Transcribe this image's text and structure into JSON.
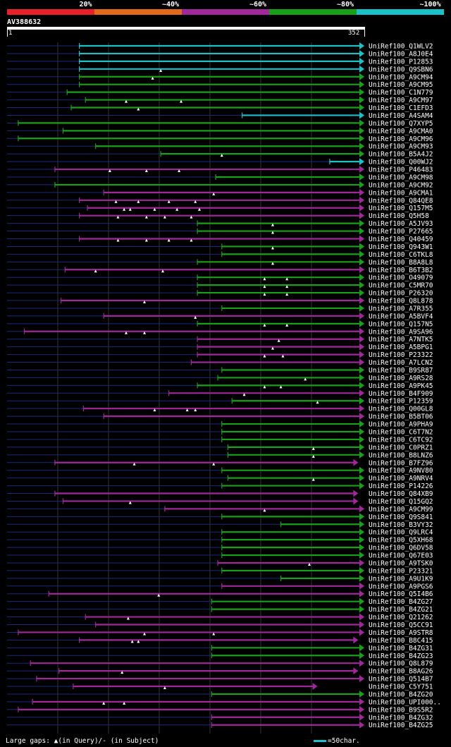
{
  "legend": {
    "labels": [
      "20%",
      "~40%",
      "~60%",
      "~80%",
      "~100%"
    ],
    "colors": [
      "#e8202a",
      "#e26a1a",
      "#a0289a",
      "#18a018",
      "#18c2c8"
    ]
  },
  "query": {
    "id": "AV388632",
    "start": "1",
    "end": "352",
    "length": 352
  },
  "colors": {
    "cyan": "#18c2c8",
    "green": "#18a018",
    "magenta": "#a0289a",
    "thin": "#1a2a7a",
    "grid": "#333"
  },
  "footer": {
    "gaps": "Large gaps: ▲(in Query)/- (in Subject)",
    "scale": "=50char."
  },
  "hits": [
    {
      "id": "UniRef100_Q1WLV2",
      "c": "cyan",
      "s": 72,
      "e": 352,
      "g": []
    },
    {
      "id": "UniRef100_A8J0E4",
      "c": "cyan",
      "s": 72,
      "e": 352,
      "g": []
    },
    {
      "id": "UniRef100_P12853",
      "c": "cyan",
      "s": 72,
      "e": 352,
      "g": []
    },
    {
      "id": "UniRef100_Q9SBN6",
      "c": "cyan",
      "s": 72,
      "e": 352,
      "g": [
        152
      ]
    },
    {
      "id": "UniRef100_A9CM94",
      "c": "green",
      "s": 72,
      "e": 352,
      "g": [
        144
      ]
    },
    {
      "id": "UniRef100_A9CM95",
      "c": "green",
      "s": 72,
      "e": 352,
      "g": []
    },
    {
      "id": "UniRef100_C1N779",
      "c": "green",
      "s": 60,
      "e": 352,
      "g": []
    },
    {
      "id": "UniRef100_A9CM97",
      "c": "green",
      "s": 78,
      "e": 352,
      "g": [
        118,
        172
      ]
    },
    {
      "id": "UniRef100_C1EFD3",
      "c": "green",
      "s": 64,
      "e": 352,
      "g": [
        130
      ]
    },
    {
      "id": "UniRef100_A4SAM4",
      "c": "cyan",
      "s": 232,
      "e": 352,
      "g": []
    },
    {
      "id": "UniRef100_Q7XYP5",
      "c": "green",
      "s": 12,
      "e": 352,
      "g": []
    },
    {
      "id": "UniRef100_A9CMA0",
      "c": "green",
      "s": 56,
      "e": 352,
      "g": []
    },
    {
      "id": "UniRef100_A9CM96",
      "c": "green",
      "s": 12,
      "e": 352,
      "g": []
    },
    {
      "id": "UniRef100_A9CM93",
      "c": "green",
      "s": 88,
      "e": 352,
      "g": []
    },
    {
      "id": "UniRef100_B5A4J2",
      "c": "green",
      "s": 152,
      "e": 352,
      "g": [
        212
      ]
    },
    {
      "id": "UniRef100_Q00WJ2",
      "c": "cyan",
      "s": 318,
      "e": 352,
      "g": []
    },
    {
      "id": "UniRef100_P46483",
      "c": "magenta",
      "s": 48,
      "e": 352,
      "g": [
        102,
        138,
        170
      ]
    },
    {
      "id": "UniRef100_A9CM98",
      "c": "green",
      "s": 206,
      "e": 352,
      "g": []
    },
    {
      "id": "UniRef100_A9CM92",
      "c": "green",
      "s": 48,
      "e": 352,
      "g": []
    },
    {
      "id": "UniRef100_A9CMA1",
      "c": "magenta",
      "s": 96,
      "e": 352,
      "g": [
        204
      ]
    },
    {
      "id": "UniRef100_Q84QE8",
      "c": "magenta",
      "s": 72,
      "e": 352,
      "g": [
        108,
        130,
        160,
        186
      ]
    },
    {
      "id": "UniRef100_Q157M5",
      "c": "magenta",
      "s": 80,
      "e": 352,
      "g": [
        116,
        122,
        146,
        168,
        190
      ]
    },
    {
      "id": "UniRef100_Q5H58",
      "c": "magenta",
      "s": 72,
      "e": 352,
      "g": [
        110,
        138,
        156,
        182
      ]
    },
    {
      "id": "UniRef100_A5JV93",
      "c": "green",
      "s": 188,
      "e": 352,
      "g": [
        262
      ]
    },
    {
      "id": "UniRef100_P27665",
      "c": "green",
      "s": 188,
      "e": 352,
      "g": [
        262
      ]
    },
    {
      "id": "UniRef100_Q40459",
      "c": "magenta",
      "s": 72,
      "e": 352,
      "g": [
        110,
        138,
        160,
        182
      ]
    },
    {
      "id": "UniRef100_Q943W1",
      "c": "green",
      "s": 212,
      "e": 352,
      "g": [
        262
      ]
    },
    {
      "id": "UniRef100_C6TKL8",
      "c": "green",
      "s": 212,
      "e": 352,
      "g": []
    },
    {
      "id": "UniRef100_B8A8L8",
      "c": "green",
      "s": 188,
      "e": 352,
      "g": [
        262
      ]
    },
    {
      "id": "UniRef100_B6T3B2",
      "c": "magenta",
      "s": 58,
      "e": 352,
      "g": [
        88,
        154
      ]
    },
    {
      "id": "UniRef100_O49079",
      "c": "green",
      "s": 188,
      "e": 352,
      "g": [
        254,
        276
      ]
    },
    {
      "id": "UniRef100_C5MR70",
      "c": "green",
      "s": 188,
      "e": 352,
      "g": [
        254,
        276
      ]
    },
    {
      "id": "UniRef100_P26320",
      "c": "green",
      "s": 188,
      "e": 352,
      "g": [
        254,
        276
      ]
    },
    {
      "id": "UniRef100_Q8L878",
      "c": "magenta",
      "s": 54,
      "e": 352,
      "g": [
        136
      ]
    },
    {
      "id": "UniRef100_A7R355",
      "c": "green",
      "s": 212,
      "e": 352,
      "g": []
    },
    {
      "id": "UniRef100_A5BVF4",
      "c": "magenta",
      "s": 96,
      "e": 352,
      "g": [
        186
      ]
    },
    {
      "id": "UniRef100_Q157N5",
      "c": "green",
      "s": 188,
      "e": 352,
      "g": [
        254,
        276
      ]
    },
    {
      "id": "UniRef100_A9SA96",
      "c": "magenta",
      "s": 18,
      "e": 352,
      "g": [
        118,
        136
      ]
    },
    {
      "id": "UniRef100_A7NTK5",
      "c": "magenta",
      "s": 188,
      "e": 352,
      "g": [
        268
      ]
    },
    {
      "id": "UniRef100_A5BPG1",
      "c": "magenta",
      "s": 188,
      "e": 352,
      "g": [
        262
      ]
    },
    {
      "id": "UniRef100_P23322",
      "c": "magenta",
      "s": 188,
      "e": 352,
      "g": [
        254,
        272
      ]
    },
    {
      "id": "UniRef100_A7LCN2",
      "c": "magenta",
      "s": 182,
      "e": 352,
      "g": []
    },
    {
      "id": "UniRef100_B9SR87",
      "c": "green",
      "s": 212,
      "e": 352,
      "g": []
    },
    {
      "id": "UniRef100_A9RS28",
      "c": "green",
      "s": 208,
      "e": 352,
      "g": [
        294
      ]
    },
    {
      "id": "UniRef100_A9PK45",
      "c": "green",
      "s": 188,
      "e": 352,
      "g": [
        254,
        270
      ]
    },
    {
      "id": "UniRef100_B4F909",
      "c": "magenta",
      "s": 160,
      "e": 352,
      "g": [
        234
      ]
    },
    {
      "id": "UniRef100_P12359",
      "c": "green",
      "s": 222,
      "e": 352,
      "g": [
        306
      ]
    },
    {
      "id": "UniRef100_Q00GL8",
      "c": "magenta",
      "s": 76,
      "e": 352,
      "g": [
        146,
        178,
        186
      ]
    },
    {
      "id": "UniRef100_B5BT06",
      "c": "magenta",
      "s": 96,
      "e": 352,
      "g": []
    },
    {
      "id": "UniRef100_A9PHA9",
      "c": "green",
      "s": 212,
      "e": 352,
      "g": []
    },
    {
      "id": "UniRef100_C6T7N2",
      "c": "green",
      "s": 212,
      "e": 352,
      "g": []
    },
    {
      "id": "UniRef100_C6TC92",
      "c": "green",
      "s": 212,
      "e": 352,
      "g": []
    },
    {
      "id": "UniRef100_C0PRZ1",
      "c": "green",
      "s": 218,
      "e": 352,
      "g": [
        302
      ]
    },
    {
      "id": "UniRef100_B8LNZ6",
      "c": "green",
      "s": 218,
      "e": 352,
      "g": [
        302
      ]
    },
    {
      "id": "UniRef100_B7FZ96",
      "c": "magenta",
      "s": 48,
      "e": 346,
      "g": [
        126,
        204
      ]
    },
    {
      "id": "UniRef100_A9NV80",
      "c": "green",
      "s": 212,
      "e": 352,
      "g": []
    },
    {
      "id": "UniRef100_A9NRV4",
      "c": "green",
      "s": 218,
      "e": 352,
      "g": [
        302
      ]
    },
    {
      "id": "UniRef100_P14226",
      "c": "green",
      "s": 212,
      "e": 352,
      "g": []
    },
    {
      "id": "UniRef100_Q84XB9",
      "c": "magenta",
      "s": 48,
      "e": 346,
      "g": []
    },
    {
      "id": "UniRef100_Q15GQ2",
      "c": "magenta",
      "s": 56,
      "e": 346,
      "g": [
        122
      ]
    },
    {
      "id": "UniRef100_A9CM99",
      "c": "magenta",
      "s": 156,
      "e": 352,
      "g": [
        254
      ]
    },
    {
      "id": "UniRef100_Q9S841",
      "c": "green",
      "s": 212,
      "e": 352,
      "g": []
    },
    {
      "id": "UniRef100_B3VY32",
      "c": "green",
      "s": 270,
      "e": 352,
      "g": []
    },
    {
      "id": "UniRef100_Q9LRC4",
      "c": "green",
      "s": 212,
      "e": 352,
      "g": []
    },
    {
      "id": "UniRef100_Q5XH68",
      "c": "green",
      "s": 212,
      "e": 352,
      "g": []
    },
    {
      "id": "UniRef100_Q6DV58",
      "c": "green",
      "s": 212,
      "e": 352,
      "g": []
    },
    {
      "id": "UniRef100_Q67E03",
      "c": "green",
      "s": 212,
      "e": 352,
      "g": []
    },
    {
      "id": "UniRef100_A9TSK0",
      "c": "magenta",
      "s": 208,
      "e": 352,
      "g": [
        298
      ]
    },
    {
      "id": "UniRef100_P23321",
      "c": "green",
      "s": 212,
      "e": 352,
      "g": []
    },
    {
      "id": "UniRef100_A9U1K9",
      "c": "green",
      "s": 270,
      "e": 352,
      "g": []
    },
    {
      "id": "UniRef100_A9PGS6",
      "c": "magenta",
      "s": 212,
      "e": 352,
      "g": []
    },
    {
      "id": "UniRef100_Q5I4B6",
      "c": "magenta",
      "s": 42,
      "e": 352,
      "g": [
        150
      ]
    },
    {
      "id": "UniRef100_B4ZG27",
      "c": "green",
      "s": 202,
      "e": 352,
      "g": []
    },
    {
      "id": "UniRef100_B4ZG21",
      "c": "green",
      "s": 202,
      "e": 352,
      "g": []
    },
    {
      "id": "UniRef100_Q21262",
      "c": "magenta",
      "s": 78,
      "e": 352,
      "g": [
        120
      ]
    },
    {
      "id": "UniRef100_Q5CC91",
      "c": "magenta",
      "s": 88,
      "e": 352,
      "g": []
    },
    {
      "id": "UniRef100_A9STR8",
      "c": "magenta",
      "s": 12,
      "e": 352,
      "g": [
        136,
        204
      ]
    },
    {
      "id": "UniRef100_B8C415",
      "c": "magenta",
      "s": 72,
      "e": 346,
      "g": [
        124,
        130
      ]
    },
    {
      "id": "UniRef100_B4ZG31",
      "c": "green",
      "s": 202,
      "e": 352,
      "g": []
    },
    {
      "id": "UniRef100_B4ZG23",
      "c": "green",
      "s": 202,
      "e": 352,
      "g": []
    },
    {
      "id": "UniRef100_Q8L879",
      "c": "magenta",
      "s": 24,
      "e": 352,
      "g": []
    },
    {
      "id": "UniRef100_B8AG26",
      "c": "magenta",
      "s": 52,
      "e": 346,
      "g": [
        114
      ]
    },
    {
      "id": "UniRef100_Q514B7",
      "c": "magenta",
      "s": 30,
      "e": 352,
      "g": []
    },
    {
      "id": "UniRef100_C5Y751",
      "c": "magenta",
      "s": 66,
      "e": 306,
      "g": [
        156
      ]
    },
    {
      "id": "UniRef100_B4ZG20",
      "c": "green",
      "s": 202,
      "e": 352,
      "g": []
    },
    {
      "id": "UniRef100_UPI000..",
      "c": "magenta",
      "s": 26,
      "e": 352,
      "g": [
        96,
        116
      ]
    },
    {
      "id": "UniRef100_B9S5R2",
      "c": "magenta",
      "s": 12,
      "e": 352,
      "g": []
    },
    {
      "id": "UniRef100_B4ZG32",
      "c": "magenta",
      "s": 202,
      "e": 352,
      "g": []
    },
    {
      "id": "UniRef100_B4ZG25",
      "c": "magenta",
      "s": 202,
      "e": 352,
      "g": []
    }
  ]
}
